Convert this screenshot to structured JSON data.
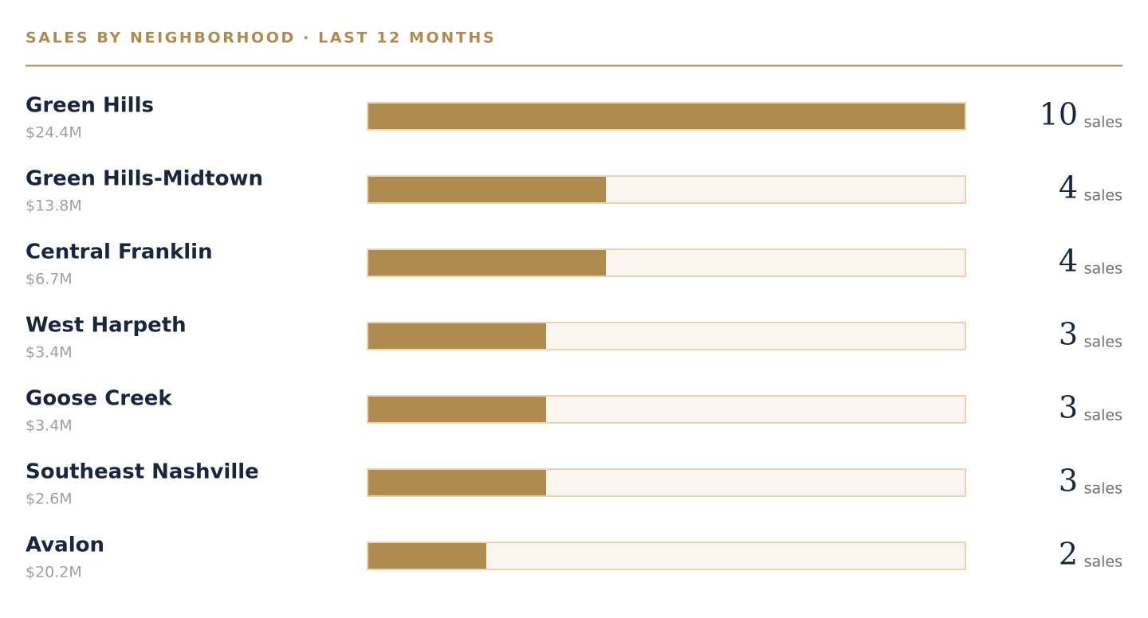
{
  "chart_data": {
    "type": "bar",
    "title": "SALES BY NEIGHBORHOOD · LAST 12 MONTHS",
    "categories": [
      "Green Hills",
      "Green Hills-Midtown",
      "Central Franklin",
      "West Harpeth",
      "Goose Creek",
      "Southeast Nashville",
      "Avalon"
    ],
    "volumes": [
      "$24.4M",
      "$13.8M",
      "$6.7M",
      "$3.4M",
      "$3.4M",
      "$2.6M",
      "$20.2M"
    ],
    "values": [
      10,
      4,
      4,
      3,
      3,
      3,
      2
    ],
    "unit": "sales",
    "color": "#b08b4f",
    "track_color": "#faf6ef",
    "xlim": [
      0,
      10
    ]
  }
}
